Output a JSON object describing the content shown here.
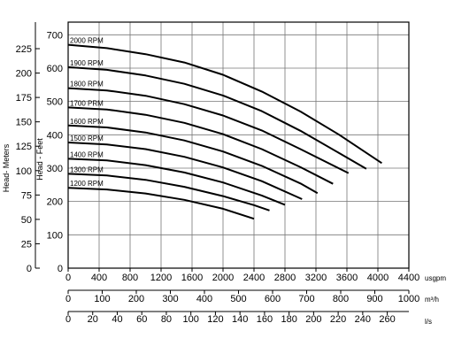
{
  "chart_data": {
    "type": "line",
    "ylabel_meters": "Head- Meters",
    "ylabel_feet": "Head - Feet",
    "meters_ticks": [
      0,
      25,
      50,
      75,
      100,
      125,
      150,
      175,
      200,
      225
    ],
    "feet_ticks": [
      0,
      100,
      200,
      300,
      400,
      500,
      600,
      700
    ],
    "x_axes": [
      {
        "unit": "usgpm",
        "max": 4400,
        "ticks": [
          0,
          400,
          800,
          1200,
          1600,
          2000,
          2400,
          2800,
          3200,
          3600,
          4000,
          4400
        ]
      },
      {
        "unit": "m³/h",
        "max": 1000,
        "ticks": [
          0,
          100,
          200,
          300,
          400,
          500,
          600,
          700,
          800,
          900,
          1000
        ]
      },
      {
        "unit": "l/s",
        "max": 277.6,
        "ticks": [
          0,
          20,
          40,
          60,
          80,
          100,
          120,
          140,
          160,
          180,
          200,
          220,
          240,
          260
        ]
      }
    ],
    "series": [
      {
        "name": "2000 RPM",
        "x": [
          0,
          500,
          1000,
          1500,
          2000,
          2500,
          3000,
          3500,
          4050
        ],
        "y": [
          670,
          660,
          642,
          617,
          580,
          530,
          470,
          400,
          315
        ]
      },
      {
        "name": "1900 RPM",
        "x": [
          0,
          500,
          1000,
          1500,
          2000,
          2500,
          3000,
          3500,
          3850
        ],
        "y": [
          603,
          595,
          578,
          553,
          518,
          471,
          412,
          345,
          298
        ]
      },
      {
        "name": "1800 RPM",
        "x": [
          0,
          500,
          1000,
          1500,
          2000,
          2500,
          3000,
          3620
        ],
        "y": [
          540,
          533,
          517,
          492,
          458,
          413,
          357,
          285
        ]
      },
      {
        "name": "1700 PRM",
        "x": [
          0,
          500,
          1000,
          1500,
          2000,
          2500,
          3000,
          3420
        ],
        "y": [
          482,
          476,
          460,
          436,
          402,
          357,
          303,
          253
        ]
      },
      {
        "name": "1600 RPM",
        "x": [
          0,
          500,
          1000,
          1500,
          2000,
          2500,
          3000,
          3220
        ],
        "y": [
          428,
          422,
          407,
          383,
          350,
          307,
          254,
          225
        ]
      },
      {
        "name": "1500 RPM",
        "x": [
          0,
          500,
          1000,
          1500,
          2000,
          2500,
          3020
        ],
        "y": [
          377,
          371,
          357,
          334,
          302,
          261,
          207
        ]
      },
      {
        "name": "1400 RPM",
        "x": [
          0,
          500,
          1000,
          1500,
          2000,
          2500,
          2800
        ],
        "y": [
          328,
          323,
          309,
          287,
          257,
          218,
          190
        ]
      },
      {
        "name": "1300 RPM",
        "x": [
          0,
          500,
          1000,
          1500,
          2000,
          2400,
          2600
        ],
        "y": [
          283,
          278,
          265,
          244,
          216,
          189,
          173
        ]
      },
      {
        "name": "1200 RPM",
        "x": [
          0,
          500,
          1000,
          1500,
          2000,
          2400
        ],
        "y": [
          241,
          236,
          224,
          205,
          178,
          148
        ]
      }
    ],
    "xlim": [
      0,
      4400
    ],
    "ylim_feet": [
      0,
      738
    ],
    "grid": true
  }
}
